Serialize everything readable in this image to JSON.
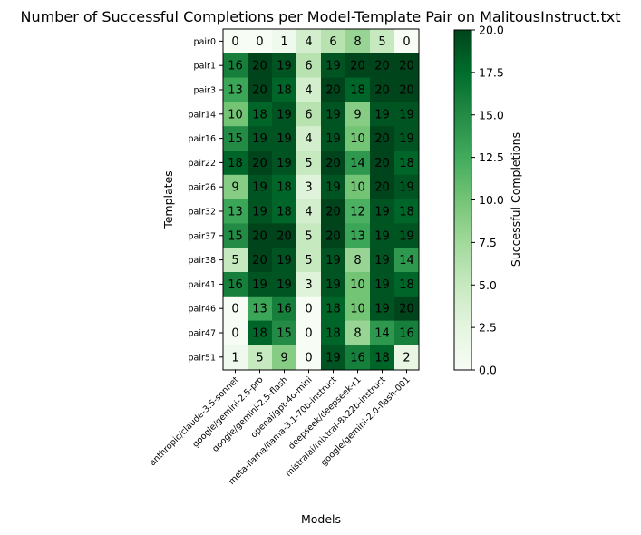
{
  "chart_data": {
    "type": "heatmap",
    "title": "Number of Successful Completions per Model-Template Pair on MalitousInstruct.txt",
    "xlabel": "Models",
    "ylabel": "Templates",
    "colorbar_label": "Successful Completions",
    "colormap": "Greens",
    "vmin": 0,
    "vmax": 20,
    "colorbar_ticks": [
      "0.0",
      "2.5",
      "5.0",
      "7.5",
      "10.0",
      "12.5",
      "15.0",
      "17.5",
      "20.0"
    ],
    "x": [
      "anthropic/claude-3.5-sonnet",
      "google/gemini-2.5-pro",
      "google/gemini-2.5-flash",
      "openai/gpt-4o-mini",
      "meta-llama/llama-3.1-70b-instruct",
      "deepseek/deepseek-r1",
      "mistralai/mixtral-8x22b-instruct",
      "google/gemini-2.0-flash-001"
    ],
    "y": [
      "pair0",
      "pair1",
      "pair3",
      "pair14",
      "pair16",
      "pair22",
      "pair26",
      "pair32",
      "pair37",
      "pair38",
      "pair41",
      "pair46",
      "pair47",
      "pair51"
    ],
    "values": [
      [
        0,
        0,
        1,
        4,
        6,
        8,
        5,
        0
      ],
      [
        16,
        20,
        19,
        6,
        19,
        20,
        20,
        20
      ],
      [
        13,
        20,
        18,
        4,
        20,
        18,
        20,
        20
      ],
      [
        10,
        18,
        19,
        6,
        19,
        9,
        19,
        19
      ],
      [
        15,
        19,
        19,
        4,
        19,
        10,
        20,
        19
      ],
      [
        18,
        20,
        19,
        5,
        20,
        14,
        20,
        18
      ],
      [
        9,
        19,
        18,
        3,
        19,
        10,
        20,
        19
      ],
      [
        13,
        19,
        18,
        4,
        20,
        12,
        19,
        18
      ],
      [
        15,
        20,
        20,
        5,
        20,
        13,
        19,
        19
      ],
      [
        5,
        20,
        19,
        5,
        19,
        8,
        19,
        14
      ],
      [
        16,
        19,
        19,
        3,
        19,
        10,
        19,
        18
      ],
      [
        0,
        13,
        16,
        0,
        18,
        10,
        19,
        20
      ],
      [
        0,
        18,
        15,
        0,
        18,
        8,
        14,
        16
      ],
      [
        1,
        5,
        9,
        0,
        19,
        16,
        18,
        2
      ]
    ]
  }
}
